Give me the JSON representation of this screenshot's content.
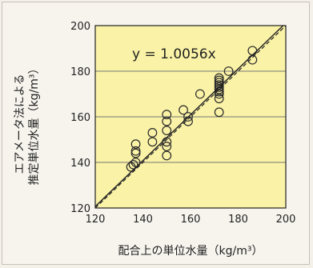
{
  "chart_data": {
    "type": "scatter",
    "equation": "y = 1.0056x",
    "xlabel": "配合上の単位水量（kg/m³）",
    "ylabel_line1": "エアメータ法による",
    "ylabel_line2": "推定単位水量（kg/m³）",
    "xlim": [
      120,
      200
    ],
    "ylim": [
      120,
      200
    ],
    "x_ticks": [
      120,
      140,
      160,
      180,
      200
    ],
    "y_ticks": [
      120,
      140,
      160,
      180,
      200
    ],
    "grid": "horizontal",
    "regression_slope": 1.0056,
    "points": [
      {
        "x": 135,
        "y": 138
      },
      {
        "x": 136,
        "y": 139
      },
      {
        "x": 137,
        "y": 140
      },
      {
        "x": 137,
        "y": 144
      },
      {
        "x": 137,
        "y": 145
      },
      {
        "x": 137,
        "y": 148
      },
      {
        "x": 144,
        "y": 149
      },
      {
        "x": 144,
        "y": 153
      },
      {
        "x": 150,
        "y": 143
      },
      {
        "x": 150,
        "y": 147
      },
      {
        "x": 150,
        "y": 149
      },
      {
        "x": 150,
        "y": 154
      },
      {
        "x": 150,
        "y": 158
      },
      {
        "x": 150,
        "y": 161
      },
      {
        "x": 157,
        "y": 163
      },
      {
        "x": 159,
        "y": 158
      },
      {
        "x": 159,
        "y": 160
      },
      {
        "x": 164,
        "y": 170
      },
      {
        "x": 172,
        "y": 162
      },
      {
        "x": 172,
        "y": 168
      },
      {
        "x": 172,
        "y": 170
      },
      {
        "x": 172,
        "y": 171
      },
      {
        "x": 172,
        "y": 172
      },
      {
        "x": 172,
        "y": 173
      },
      {
        "x": 172,
        "y": 174
      },
      {
        "x": 172,
        "y": 175
      },
      {
        "x": 172,
        "y": 176
      },
      {
        "x": 172,
        "y": 177
      },
      {
        "x": 176,
        "y": 180
      },
      {
        "x": 186,
        "y": 185
      },
      {
        "x": 186,
        "y": 189
      }
    ],
    "colors": {
      "plot_bg": "#faf2a6",
      "grid": "#777777",
      "marker": "#2a2a2a",
      "line": "#222222"
    }
  }
}
